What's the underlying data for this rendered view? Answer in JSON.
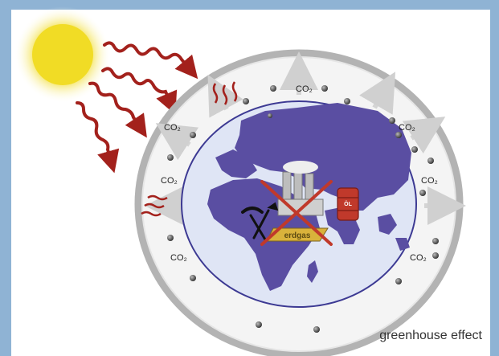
{
  "diagram": {
    "caption": "greenhouse effect",
    "co2_label": "CO₂",
    "oil_label": "ÖL",
    "gas_label": "erdgas",
    "colors": {
      "frame_blue": "#8fb3d4",
      "panel": "#ffffff",
      "sun": "#f2dd2a",
      "heat_waves": "#a3211c",
      "atmosphere_ring": "#a9a9a9",
      "ocean": "#dfe5f5",
      "land": "#5b4fa3",
      "cross": "#c0392b",
      "oil_barrel": "#c0392b",
      "co2_dot": "#444444"
    },
    "icons": [
      "sun-icon",
      "factory-icon",
      "oil-barrel-icon",
      "shovel-pickaxe-icon",
      "gas-plate-icon",
      "cross-out-icon"
    ]
  }
}
